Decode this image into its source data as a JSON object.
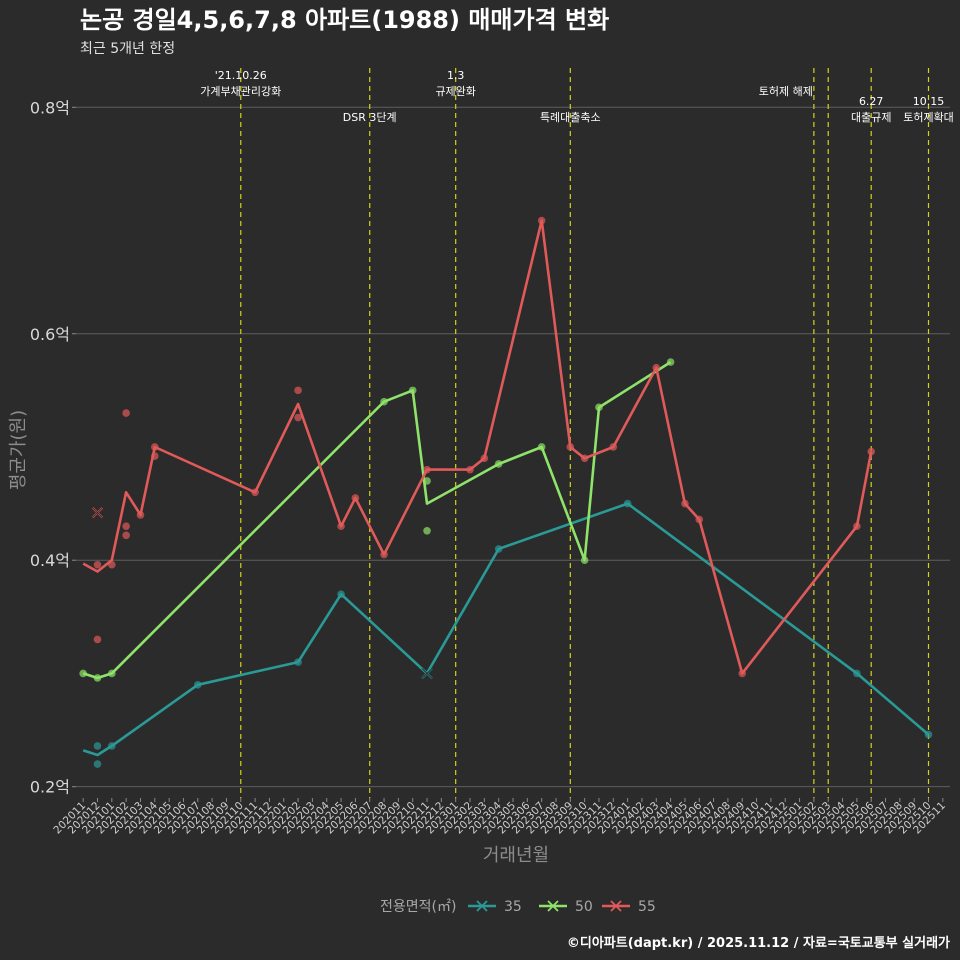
{
  "title": "논공 경일4,5,6,7,8 아파트(1988) 매매가격 변화",
  "subtitle": "최근 5개년 한정",
  "caption": "©디아파트(dapt.kr) / 2025.11.12 / 자료=국토교통부 실거래가",
  "chart_data": {
    "type": "line",
    "xlabel": "거래년월",
    "ylabel": "평균가(원)",
    "x_months": [
      "202011",
      "202012",
      "202101",
      "202102",
      "202103",
      "202104",
      "202105",
      "202106",
      "202107",
      "202108",
      "202109",
      "202110",
      "202111",
      "202112",
      "202201",
      "202202",
      "202203",
      "202204",
      "202205",
      "202206",
      "202207",
      "202208",
      "202209",
      "202210",
      "202211",
      "202212",
      "202301",
      "202302",
      "202303",
      "202304",
      "202305",
      "202306",
      "202307",
      "202308",
      "202309",
      "202310",
      "202311",
      "202312",
      "202401",
      "202402",
      "202403",
      "202404",
      "202405",
      "202406",
      "202407",
      "202408",
      "202409",
      "202410",
      "202411",
      "202412",
      "202501",
      "202502",
      "202503",
      "202504",
      "202505",
      "202506",
      "202507",
      "202508",
      "202509",
      "202510",
      "202511"
    ],
    "ylim": [
      0.19,
      0.84
    ],
    "y_ticks": [
      {
        "value": 0.2,
        "label": "0.2억"
      },
      {
        "value": 0.4,
        "label": "0.4억"
      },
      {
        "value": 0.6,
        "label": "0.6억"
      },
      {
        "value": 0.8,
        "label": "0.8억"
      }
    ],
    "legend": {
      "title": "전용면적(㎡)",
      "position": "bottom"
    },
    "series": [
      {
        "name": "35",
        "color": "#2a9a96",
        "line": [
          [
            "202011",
            0.232
          ],
          [
            "202012",
            0.228
          ],
          [
            "202101",
            0.236
          ],
          [
            "202107",
            0.29
          ],
          [
            "202202",
            0.31
          ],
          [
            "202205",
            0.37
          ],
          [
            "202211",
            0.3
          ],
          [
            "202304",
            0.41
          ],
          [
            "202401",
            0.45
          ],
          [
            "202505",
            0.3
          ],
          [
            "202510",
            0.246
          ]
        ],
        "points": [
          [
            "202012",
            0.236
          ],
          [
            "202012",
            0.22
          ],
          [
            "202101",
            0.236
          ],
          [
            "202107",
            0.29
          ],
          [
            "202202",
            0.31
          ],
          [
            "202205",
            0.37
          ],
          [
            "202304",
            0.41
          ],
          [
            "202401",
            0.45
          ],
          [
            "202505",
            0.3
          ],
          [
            "202510",
            0.246
          ]
        ],
        "cancelled": [
          [
            "202211",
            0.3
          ]
        ]
      },
      {
        "name": "50",
        "color": "#8fe36a",
        "line": [
          [
            "202011",
            0.3
          ],
          [
            "202012",
            0.296
          ],
          [
            "202101",
            0.3
          ],
          [
            "202208",
            0.54
          ],
          [
            "202210",
            0.55
          ],
          [
            "202211",
            0.45
          ],
          [
            "202304",
            0.485
          ],
          [
            "202307",
            0.5
          ],
          [
            "202310",
            0.4
          ],
          [
            "202311",
            0.535
          ],
          [
            "202404",
            0.575
          ]
        ],
        "points": [
          [
            "202011",
            0.3
          ],
          [
            "202012",
            0.296
          ],
          [
            "202101",
            0.3
          ],
          [
            "202208",
            0.54
          ],
          [
            "202210",
            0.55
          ],
          [
            "202211",
            0.47
          ],
          [
            "202211",
            0.426
          ],
          [
            "202304",
            0.485
          ],
          [
            "202307",
            0.5
          ],
          [
            "202310",
            0.4
          ],
          [
            "202311",
            0.535
          ],
          [
            "202404",
            0.575
          ]
        ],
        "cancelled": []
      },
      {
        "name": "55",
        "color": "#e05a5a",
        "line": [
          [
            "202011",
            0.397
          ],
          [
            "202012",
            0.39
          ],
          [
            "202101",
            0.4
          ],
          [
            "202102",
            0.46
          ],
          [
            "202103",
            0.44
          ],
          [
            "202104",
            0.5
          ],
          [
            "202111",
            0.46
          ],
          [
            "202202",
            0.538
          ],
          [
            "202205",
            0.43
          ],
          [
            "202206",
            0.455
          ],
          [
            "202208",
            0.405
          ],
          [
            "202211",
            0.48
          ],
          [
            "202302",
            0.48
          ],
          [
            "202303",
            0.49
          ],
          [
            "202307",
            0.7
          ],
          [
            "202309",
            0.5
          ],
          [
            "202310",
            0.49
          ],
          [
            "202312",
            0.5
          ],
          [
            "202403",
            0.57
          ],
          [
            "202405",
            0.45
          ],
          [
            "202406",
            0.436
          ],
          [
            "202409",
            0.3
          ],
          [
            "202505",
            0.43
          ],
          [
            "202506",
            0.496
          ]
        ],
        "points": [
          [
            "202012",
            0.396
          ],
          [
            "202012",
            0.33
          ],
          [
            "202101",
            0.396
          ],
          [
            "202102",
            0.43
          ],
          [
            "202102",
            0.422
          ],
          [
            "202102",
            0.53
          ],
          [
            "202103",
            0.44
          ],
          [
            "202104",
            0.5
          ],
          [
            "202104",
            0.492
          ],
          [
            "202111",
            0.46
          ],
          [
            "202202",
            0.55
          ],
          [
            "202202",
            0.526
          ],
          [
            "202205",
            0.43
          ],
          [
            "202206",
            0.455
          ],
          [
            "202208",
            0.405
          ],
          [
            "202211",
            0.48
          ],
          [
            "202302",
            0.48
          ],
          [
            "202303",
            0.49
          ],
          [
            "202307",
            0.7
          ],
          [
            "202309",
            0.5
          ],
          [
            "202310",
            0.49
          ],
          [
            "202312",
            0.5
          ],
          [
            "202403",
            0.57
          ],
          [
            "202405",
            0.45
          ],
          [
            "202406",
            0.436
          ],
          [
            "202409",
            0.3
          ],
          [
            "202505",
            0.43
          ],
          [
            "202506",
            0.496
          ]
        ],
        "cancelled": [
          [
            "202012",
            0.442
          ]
        ]
      }
    ],
    "events": [
      {
        "month": "202110",
        "lines": [
          "'21.10.26",
          "가계부채관리강화"
        ],
        "row": 0
      },
      {
        "month": "202207",
        "lines": [
          "DSR 3단계"
        ],
        "row": 1
      },
      {
        "month": "202301",
        "lines": [
          "1.3",
          "규제완화"
        ],
        "row": 0
      },
      {
        "month": "202309",
        "lines": [
          "특례대출축소"
        ],
        "row": 1
      },
      {
        "month": "202502",
        "lines": [
          "토허제 해제"
        ],
        "row": 0,
        "anchor": "end"
      },
      {
        "month": "202503",
        "lines": [],
        "row": 0
      },
      {
        "month": "202506",
        "lines": [
          "6.27",
          "대출규제"
        ],
        "row": 1
      },
      {
        "month": "202510",
        "lines": [
          "10.15",
          "토허제확대"
        ],
        "row": 1
      }
    ]
  }
}
